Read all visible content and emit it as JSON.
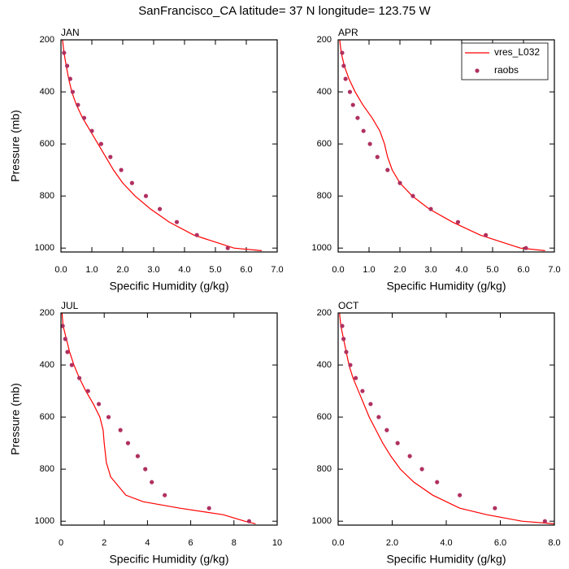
{
  "title": "SanFrancisco_CA  latitude= 37 N longitude= 123.75 W",
  "chart_data": [
    {
      "type": "line",
      "title": "JAN",
      "xlabel": "Specific Humidity (g/kg)",
      "ylabel": "Pressure (mb)",
      "xlim": [
        0,
        7
      ],
      "xticks": [
        {
          "value": 0,
          "label": "0.0"
        },
        {
          "value": 1,
          "label": "1.0"
        },
        {
          "value": 2,
          "label": "2.0"
        },
        {
          "value": 3,
          "label": "3.0"
        },
        {
          "value": 4,
          "label": "4.0"
        },
        {
          "value": 5,
          "label": "5.0"
        },
        {
          "value": 6,
          "label": "6.0"
        },
        {
          "value": 7,
          "label": "7.0"
        }
      ],
      "ylim": [
        200,
        1015
      ],
      "yreverse": true,
      "yticks": [
        200,
        400,
        600,
        800,
        1000
      ],
      "series": [
        {
          "color": "#ff0000",
          "style": "line",
          "x": [
            0.05,
            0.1,
            0.17,
            0.25,
            0.35,
            0.5,
            0.7,
            0.95,
            1.2,
            1.45,
            1.7,
            2.0,
            2.4,
            2.9,
            3.5,
            4.3,
            5.6,
            6.5
          ],
          "values": [
            200,
            250,
            300,
            350,
            400,
            450,
            500,
            550,
            600,
            650,
            700,
            750,
            800,
            850,
            900,
            950,
            1000,
            1010
          ]
        },
        {
          "color": "#b03060",
          "style": "marker",
          "x": [
            0.1,
            0.2,
            0.3,
            0.38,
            0.55,
            0.75,
            1.0,
            1.3,
            1.6,
            1.95,
            2.3,
            2.75,
            3.2,
            3.75,
            4.4,
            5.4
          ],
          "values": [
            250,
            300,
            350,
            400,
            450,
            500,
            550,
            600,
            650,
            700,
            750,
            800,
            850,
            900,
            950,
            1000
          ]
        }
      ]
    },
    {
      "type": "line",
      "title": "APR",
      "xlabel": "Specific Humidity (g/kg)",
      "legend": "upper right",
      "xlim": [
        0,
        7
      ],
      "xticks": [
        {
          "value": 0,
          "label": "0.0"
        },
        {
          "value": 1,
          "label": "1.0"
        },
        {
          "value": 2,
          "label": "2.0"
        },
        {
          "value": 3,
          "label": "3.0"
        },
        {
          "value": 4,
          "label": "4.0"
        },
        {
          "value": 5,
          "label": "5.0"
        },
        {
          "value": 6,
          "label": "6.0"
        },
        {
          "value": 7,
          "label": "7.0"
        }
      ],
      "ylim": [
        200,
        1015
      ],
      "yreverse": true,
      "yticks": [
        200,
        400,
        600,
        800,
        1000
      ],
      "series": [
        {
          "name": "vres_L032",
          "color": "#ff0000",
          "style": "line",
          "x": [
            0.05,
            0.1,
            0.2,
            0.35,
            0.55,
            0.8,
            1.1,
            1.35,
            1.5,
            1.6,
            1.75,
            2.0,
            2.4,
            2.95,
            3.7,
            4.6,
            5.9,
            6.7
          ],
          "values": [
            200,
            250,
            300,
            350,
            400,
            450,
            500,
            550,
            600,
            650,
            700,
            750,
            800,
            850,
            900,
            950,
            1000,
            1010
          ]
        },
        {
          "name": "raobs",
          "color": "#b03060",
          "style": "marker",
          "x": [
            0.13,
            0.18,
            0.24,
            0.38,
            0.48,
            0.63,
            0.82,
            1.03,
            1.27,
            1.6,
            2.0,
            2.42,
            3.0,
            3.88,
            4.78,
            6.08
          ],
          "values": [
            250,
            300,
            350,
            400,
            450,
            500,
            550,
            600,
            650,
            700,
            750,
            800,
            850,
            900,
            950,
            1000
          ]
        }
      ]
    },
    {
      "type": "line",
      "title": "JUL",
      "xlabel": "Specific Humidity (g/kg)",
      "ylabel": "Pressure (mb)",
      "xlim": [
        0,
        10
      ],
      "xticks": [
        0,
        2,
        4,
        6,
        8,
        10
      ],
      "ylim": [
        200,
        1015
      ],
      "yreverse": true,
      "yticks": [
        200,
        400,
        600,
        800,
        1000
      ],
      "series": [
        {
          "color": "#ff0000",
          "style": "line",
          "x": [
            0.05,
            0.1,
            0.25,
            0.4,
            0.6,
            0.85,
            1.15,
            1.5,
            1.8,
            1.95,
            2.0,
            2.1,
            2.3,
            3.0,
            3.8,
            5.5,
            7.5,
            8.5,
            9.0
          ],
          "values": [
            200,
            250,
            300,
            350,
            400,
            450,
            500,
            550,
            600,
            650,
            700,
            775,
            830,
            900,
            925,
            950,
            975,
            1000,
            1010
          ]
        },
        {
          "color": "#b03060",
          "style": "marker",
          "x": [
            0.08,
            0.2,
            0.3,
            0.5,
            0.85,
            1.25,
            1.75,
            2.2,
            2.75,
            3.1,
            3.55,
            3.9,
            4.2,
            4.8,
            6.85,
            8.7
          ],
          "values": [
            250,
            300,
            350,
            400,
            450,
            500,
            550,
            600,
            650,
            700,
            750,
            800,
            850,
            900,
            950,
            1000
          ]
        }
      ]
    },
    {
      "type": "line",
      "title": "OCT",
      "xlabel": "Specific Humidity (g/kg)",
      "xlim": [
        0,
        8
      ],
      "xticks": [
        {
          "value": 0,
          "label": "0.0"
        },
        {
          "value": 2,
          "label": "2.0"
        },
        {
          "value": 4,
          "label": "4.0"
        },
        {
          "value": 6,
          "label": "6.0"
        },
        {
          "value": 8,
          "label": "8.0"
        }
      ],
      "ylim": [
        200,
        1015
      ],
      "yreverse": true,
      "yticks": [
        200,
        400,
        600,
        800,
        1000
      ],
      "series": [
        {
          "color": "#ff0000",
          "style": "line",
          "x": [
            0.05,
            0.1,
            0.2,
            0.3,
            0.4,
            0.55,
            0.75,
            0.95,
            1.15,
            1.4,
            1.65,
            1.95,
            2.3,
            2.8,
            3.5,
            4.5,
            5.5,
            6.8,
            8.0
          ],
          "values": [
            200,
            250,
            300,
            350,
            400,
            450,
            500,
            550,
            600,
            650,
            700,
            750,
            800,
            850,
            900,
            950,
            975,
            1000,
            1010
          ]
        },
        {
          "color": "#b03060",
          "style": "marker",
          "x": [
            0.15,
            0.2,
            0.3,
            0.45,
            0.65,
            0.9,
            1.2,
            1.5,
            1.8,
            2.2,
            2.65,
            3.1,
            3.66,
            4.5,
            5.8,
            7.65
          ],
          "values": [
            250,
            300,
            350,
            400,
            450,
            500,
            550,
            600,
            650,
            700,
            750,
            800,
            850,
            900,
            950,
            1000
          ]
        }
      ]
    }
  ]
}
